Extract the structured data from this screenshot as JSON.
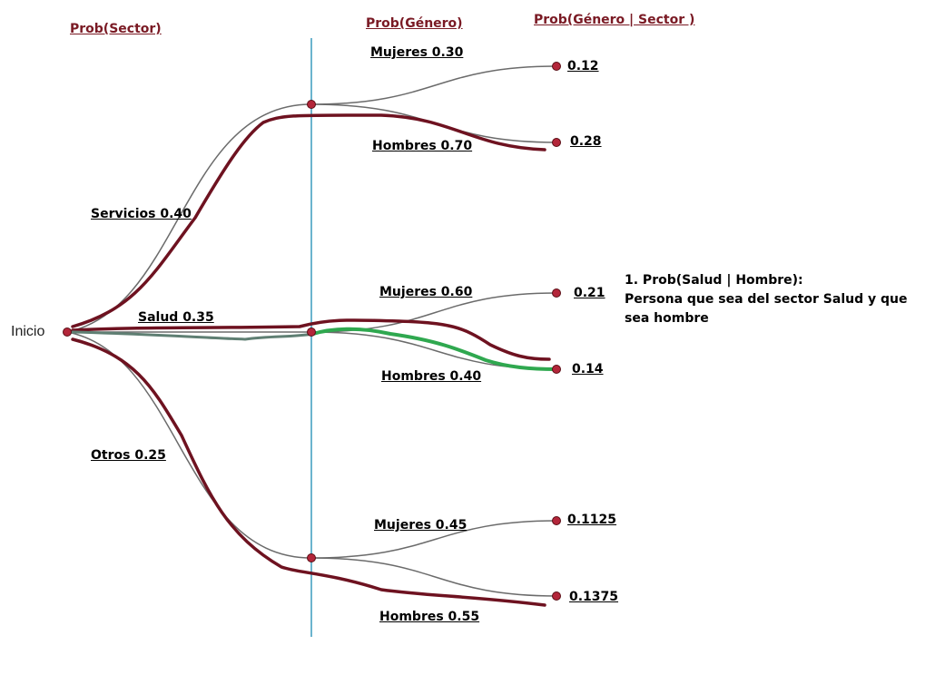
{
  "headers": {
    "sector": "Prob(Sector)",
    "genero": "Prob(Género)",
    "genero_dado_sector": "Prob(Género | Sector )"
  },
  "root_label": "Inicio",
  "sectors": [
    {
      "label": "Servicios 0.40",
      "branches": [
        {
          "label": "Mujeres 0.30",
          "result": "0.12"
        },
        {
          "label": "Hombres 0.70",
          "result": "0.28"
        }
      ]
    },
    {
      "label": "Salud 0.35",
      "branches": [
        {
          "label": "Mujeres 0.60",
          "result": "0.21"
        },
        {
          "label": "Hombres 0.40",
          "result": "0.14"
        }
      ]
    },
    {
      "label": "Otros 0.25",
      "branches": [
        {
          "label": "Mujeres 0.45",
          "result": "0.1125"
        },
        {
          "label": "Hombres 0.55",
          "result": "0.1375"
        }
      ]
    }
  ],
  "note": {
    "line1": "1. Prob(Salud | Hombre):",
    "line2": "Persona que sea del sector Salud y que",
    "line3": "sea hombre"
  },
  "colors": {
    "branch_line": "#6b6b6b",
    "highlight_path": "#6e1220",
    "salud_hombre_path": "#2fa84f",
    "divider": "#3a9bbd",
    "node": "#b3263a",
    "header_text": "#7a1a24"
  }
}
